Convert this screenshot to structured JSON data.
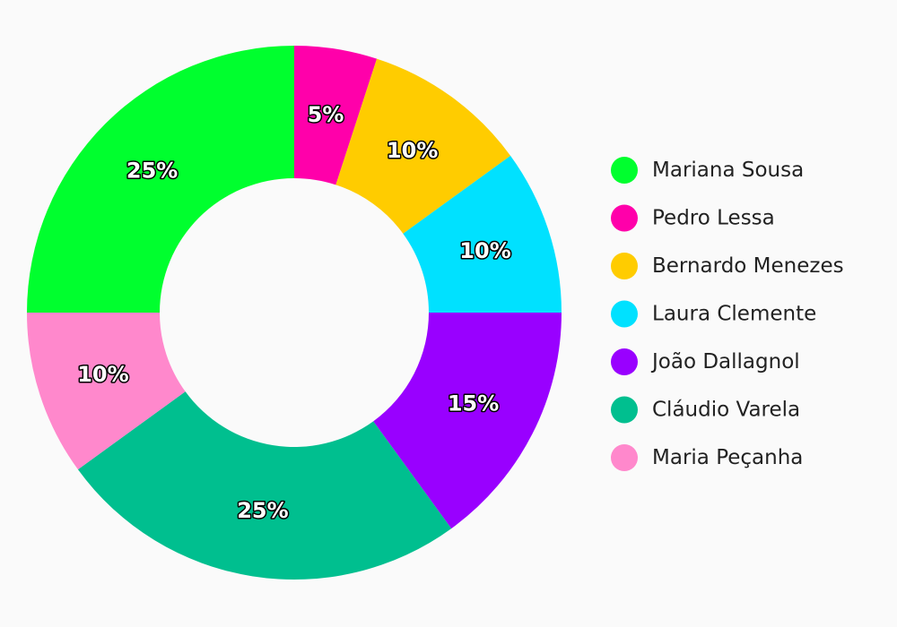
{
  "chart_data": {
    "type": "pie",
    "variant": "donut",
    "title": "",
    "legend_position": "right",
    "slices": [
      {
        "name": "Mariana Sousa",
        "value": 25,
        "label": "25%",
        "color": "#00ff2e"
      },
      {
        "name": "Pedro Lessa",
        "value": 5,
        "label": "5%",
        "color": "#ff00aa"
      },
      {
        "name": "Bernardo Menezes",
        "value": 10,
        "label": "10%",
        "color": "#ffcc00"
      },
      {
        "name": "Laura Clemente",
        "value": 10,
        "label": "10%",
        "color": "#00e1ff"
      },
      {
        "name": "João Dallagnol",
        "value": 15,
        "label": "15%",
        "color": "#9900ff"
      },
      {
        "name": "Cláudio Varela",
        "value": 25,
        "label": "25%",
        "color": "#00bf8f"
      },
      {
        "name": "Maria Peçanha",
        "value": 10,
        "label": "10%",
        "color": "#ff88cc"
      }
    ],
    "draw_order": [
      "Pedro Lessa",
      "Bernardo Menezes",
      "Laura Clemente",
      "João Dallagnol",
      "Cláudio Varela",
      "Maria Peçanha",
      "Mariana Sousa"
    ]
  }
}
